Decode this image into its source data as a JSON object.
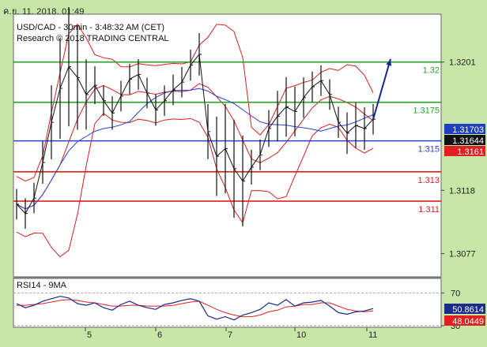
{
  "timestamp": "ค.ย. 11, 2018, 01:49",
  "chart_data": {
    "type": "line",
    "title": "USD/CAD - 30min - 3:48:32 AM (CET)",
    "subtitle": "Research © 2018 TRADING CENTRAL",
    "x_ticks": [
      "5",
      "6",
      "7",
      "10",
      "11"
    ],
    "price_axis": {
      "range": [
        1.3062,
        1.3232
      ],
      "ticks": [
        "1.3201",
        "1.3118",
        "1.3077"
      ]
    },
    "levels": [
      {
        "label": "1.32",
        "value": 1.3201,
        "color": "#2e9d2e"
      },
      {
        "label": "1.3175",
        "value": 1.3175,
        "color": "#2e9d2e"
      },
      {
        "label": "1.315",
        "value": 1.315,
        "color": "#2b3fd8"
      },
      {
        "label": "1.313",
        "value": 1.313,
        "color": "#e02020"
      },
      {
        "label": "1.311",
        "value": 1.3111,
        "color": "#e02020"
      }
    ],
    "price_badges": [
      {
        "label": "1.31703",
        "value": 1.31703,
        "bg": "#1f3fbf"
      },
      {
        "label": "1.31644",
        "value": 1.31644,
        "bg": "#111111"
      },
      {
        "label": "1.3161",
        "value": 1.3161,
        "bg": "#e02020"
      }
    ],
    "series": [
      {
        "name": "USD/CAD",
        "color": "#111111",
        "values": [
          1.3109,
          1.3103,
          1.3113,
          1.3136,
          1.3162,
          1.3184,
          1.3198,
          1.3191,
          1.318,
          1.3186,
          1.3176,
          1.3168,
          1.3179,
          1.319,
          1.3193,
          1.3181,
          1.317,
          1.3176,
          1.3183,
          1.3188,
          1.3199,
          1.3206,
          1.3156,
          1.314,
          1.3145,
          1.3132,
          1.3124,
          1.3133,
          1.3141,
          1.3158,
          1.3166,
          1.3172,
          1.3169,
          1.3178,
          1.3185,
          1.3189,
          1.318,
          1.3162,
          1.3155,
          1.316,
          1.3158,
          1.3164
        ]
      }
    ],
    "rsi": {
      "label": "RSI14 - 9MA",
      "range": [
        28,
        88
      ],
      "ticks": [
        "70",
        "30"
      ],
      "rsi_badge": "50.8614",
      "ma_badge": "48.0449",
      "rsi_values": [
        57,
        52,
        55,
        60,
        63,
        66,
        64,
        57,
        55,
        58,
        52,
        49,
        56,
        60,
        55,
        52,
        50,
        56,
        58,
        61,
        63,
        60,
        42,
        38,
        41,
        37,
        43,
        46,
        50,
        58,
        55,
        62,
        54,
        58,
        59,
        61,
        54,
        46,
        44,
        47,
        48,
        51
      ],
      "ma_values": [
        55,
        55,
        56,
        57,
        59,
        61,
        62,
        61,
        59,
        58,
        56,
        54,
        54,
        55,
        55,
        54,
        54,
        54,
        55,
        57,
        59,
        60,
        55,
        50,
        46,
        43,
        41,
        41,
        43,
        47,
        49,
        53,
        54,
        56,
        56,
        58,
        58,
        54,
        50,
        48,
        47,
        48
      ]
    }
  }
}
